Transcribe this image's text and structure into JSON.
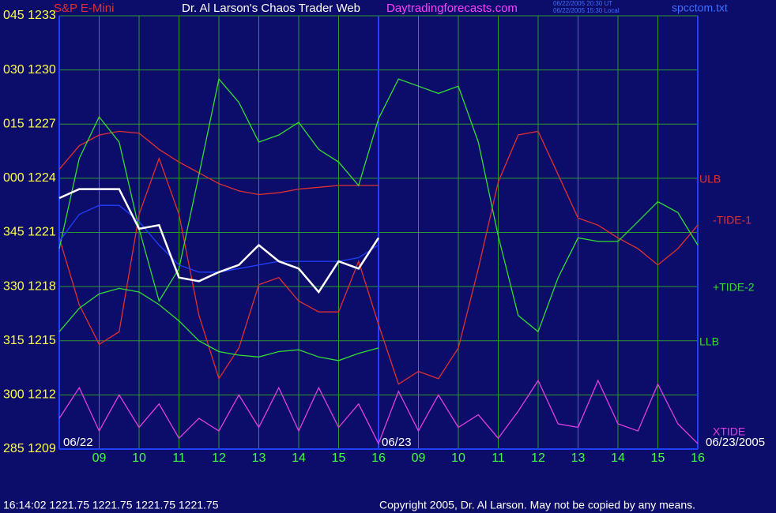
{
  "chart_data": {
    "type": "line",
    "title": "Dr. Al Larson's Chaos Trader Web",
    "subtitle": "Daytradingforecasts.com",
    "instrument": "S&P E-Mini",
    "timestamps": [
      "06/22/2005 20:30 UT",
      "06/22/2005 15:30 Local"
    ],
    "file": "spcctom.txt",
    "date_labels": [
      "06/22",
      "06/23",
      "06/23/2005"
    ],
    "status": "16:14:02  1221.75 1221.75 1221.75 1221.75",
    "copyright": "Copyright 2005, Dr. Al Larson. May not be copied by any means.",
    "grid": true,
    "grid_color": "#2e9a2e",
    "xlim": [
      0,
      16
    ],
    "xticks": [
      {
        "value": 1,
        "label": "09"
      },
      {
        "value": 2,
        "label": "10"
      },
      {
        "value": 3,
        "label": "11"
      },
      {
        "value": 4,
        "label": "12"
      },
      {
        "value": 5,
        "label": "13"
      },
      {
        "value": 6,
        "label": "14"
      },
      {
        "value": 7,
        "label": "15"
      },
      {
        "value": 8,
        "label": "16"
      },
      {
        "value": 9,
        "label": "09"
      },
      {
        "value": 10,
        "label": "10"
      },
      {
        "value": 11,
        "label": "11"
      },
      {
        "value": 12,
        "label": "12"
      },
      {
        "value": 13,
        "label": "13"
      },
      {
        "value": 14,
        "label": "14"
      },
      {
        "value": 15,
        "label": "15"
      },
      {
        "value": 16,
        "label": "16"
      }
    ],
    "ylim": [
      1209,
      1233
    ],
    "yticks": [
      {
        "value": 1233,
        "label": "045 1233"
      },
      {
        "value": 1230,
        "label": "030 1230"
      },
      {
        "value": 1227,
        "label": "015 1227"
      },
      {
        "value": 1224,
        "label": "000 1224"
      },
      {
        "value": 1221,
        "label": "345 1221"
      },
      {
        "value": 1218,
        "label": "330 1218"
      },
      {
        "value": 1215,
        "label": "315 1215"
      },
      {
        "value": 1212,
        "label": "300 1212"
      },
      {
        "value": 1209,
        "label": "285 1209"
      }
    ],
    "x": [
      0,
      0.5,
      1,
      1.5,
      2,
      2.5,
      3,
      3.5,
      4,
      4.5,
      5,
      5.5,
      6,
      6.5,
      7,
      7.5,
      8,
      8.5,
      9,
      9.5,
      10,
      10.5,
      11,
      11.5,
      12,
      12.5,
      13,
      13.5,
      14,
      14.5,
      15,
      15.5,
      16
    ],
    "series": [
      {
        "name": "ULB",
        "color": "#e03030",
        "values": [
          1224.5,
          1225.8,
          1226.4,
          1226.6,
          1226.5,
          1225.6,
          1224.9,
          1224.3,
          1223.7,
          1223.3,
          1223.1,
          1223.2,
          1223.4,
          1223.5,
          1223.6,
          1223.6,
          1223.6,
          null,
          null,
          null,
          null,
          null,
          null,
          null,
          null,
          null,
          null,
          null,
          null,
          null,
          null,
          null,
          null
        ]
      },
      {
        "name": "-TIDE-1",
        "color": "#e03030",
        "values": [
          1220.7,
          1217,
          1214.8,
          1215.5,
          1222,
          1225.1,
          1222,
          1216.4,
          1212.9,
          1214.6,
          1218.1,
          1218.5,
          1217.2,
          1216.6,
          1216.6,
          1219.4,
          1215.9,
          1212.6,
          1213.3,
          1212.9,
          1214.6,
          1219,
          1223.8,
          1226.4,
          1226.6,
          1224.2,
          1221.8,
          1221.4,
          1220.7,
          1220.1,
          1219.2,
          1220.1,
          1221.4
        ]
      },
      {
        "name": "+TIDE-2",
        "color": "#33dd33",
        "values": [
          1220.1,
          1225.1,
          1227.4,
          1226,
          1221.2,
          1217.2,
          1219,
          1224.2,
          1229.5,
          1228.2,
          1226,
          1226.4,
          1227.1,
          1225.6,
          1224.9,
          1223.6,
          1227.3,
          1229.5,
          1229.1,
          1228.7,
          1229.1,
          1226,
          1220.8,
          1216.4,
          1215.5,
          1218.5,
          1220.7,
          1220.5,
          1220.5,
          1221.6,
          1222.7,
          1222.1,
          1220.3
        ]
      },
      {
        "name": "LLB",
        "color": "#33dd33",
        "values": [
          1215.5,
          1216.8,
          1217.6,
          1217.9,
          1217.7,
          1217,
          1216.1,
          1215,
          1214.4,
          1214.2,
          1214.1,
          1214.4,
          1214.5,
          1214.1,
          1213.9,
          1214.3,
          1214.6,
          null,
          null,
          null,
          null,
          null,
          null,
          null,
          null,
          null,
          null,
          null,
          null,
          null,
          null,
          null,
          null
        ]
      },
      {
        "name": "XTIDE",
        "color": "#e040e0",
        "values": [
          1210.7,
          1212.4,
          1210,
          1212,
          1210.2,
          1211.5,
          1209.6,
          1210.7,
          1210,
          1212,
          1210.2,
          1212.4,
          1210,
          1212.4,
          1210.2,
          1211.5,
          1209.3,
          1212.2,
          1210,
          1212,
          1210.2,
          1210.9,
          1209.6,
          1211.1,
          1212.8,
          1210.4,
          1210.2,
          1212.8,
          1210.4,
          1210,
          1212.6,
          1210.4,
          1209.3
        ]
      },
      {
        "color": "#2040ff",
        "values": [
          1220.5,
          1222,
          1222.5,
          1222.5,
          1221.6,
          1220.3,
          1219.2,
          1218.8,
          1218.8,
          1219,
          1219.2,
          1219.4,
          1219.4,
          1219.4,
          1219.4,
          1219.6,
          1220.3,
          null,
          null,
          null,
          null,
          null,
          null,
          null,
          null,
          null,
          null,
          null,
          null,
          null,
          null,
          null,
          null
        ]
      },
      {
        "color": "#ffffff",
        "values": [
          1222.9,
          1223.4,
          1223.4,
          1223.4,
          1221.2,
          1221.4,
          1218.5,
          1218.3,
          1218.8,
          1219.2,
          1220.3,
          1219.4,
          1219,
          1217.7,
          1219.4,
          1219,
          1220.7,
          null,
          null,
          null,
          null,
          null,
          null,
          null,
          null,
          null,
          null,
          null,
          null,
          null,
          null,
          null,
          null
        ]
      }
    ]
  }
}
